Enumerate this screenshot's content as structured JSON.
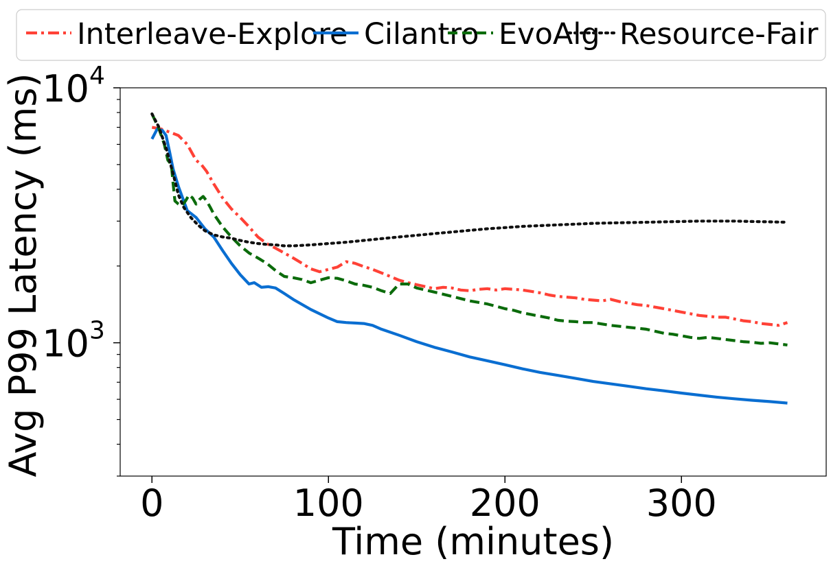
{
  "chart_data": {
    "type": "line",
    "title": "",
    "xlabel": "Time (minutes)",
    "ylabel": "Avg P99 Latency (ms)",
    "xlim": [
      -18,
      382
    ],
    "ylim": [
      300,
      10000
    ],
    "yscale": "log",
    "x_ticks": [
      0,
      100,
      200,
      300
    ],
    "x_tick_labels": [
      "0",
      "100",
      "200",
      "300"
    ],
    "y_major_ticks": [
      1000,
      10000
    ],
    "y_tick_labels": [
      {
        "value": 1000,
        "base": "10",
        "exp": "3"
      },
      {
        "value": 10000,
        "base": "10",
        "exp": "4"
      }
    ],
    "y_minor_ticks": [
      300,
      400,
      500,
      600,
      700,
      800,
      900,
      2000,
      3000,
      4000,
      5000,
      6000,
      7000,
      8000,
      9000
    ],
    "grid": false,
    "legend_position": "top, outside, single row",
    "series": [
      {
        "name": "Interleave-Explore",
        "color": "#ff4136",
        "dash": "dashdot",
        "points": [
          [
            0,
            7000
          ],
          [
            5,
            6900
          ],
          [
            10,
            6700
          ],
          [
            15,
            6500
          ],
          [
            20,
            6000
          ],
          [
            25,
            5200
          ],
          [
            28,
            5000
          ],
          [
            31,
            4700
          ],
          [
            35,
            4200
          ],
          [
            40,
            3700
          ],
          [
            45,
            3350
          ],
          [
            50,
            3100
          ],
          [
            55,
            2850
          ],
          [
            60,
            2600
          ],
          [
            65,
            2450
          ],
          [
            70,
            2350
          ],
          [
            75,
            2250
          ],
          [
            80,
            2150
          ],
          [
            85,
            2050
          ],
          [
            90,
            1950
          ],
          [
            95,
            1900
          ],
          [
            100,
            1940
          ],
          [
            105,
            1980
          ],
          [
            110,
            2080
          ],
          [
            115,
            2050
          ],
          [
            120,
            1990
          ],
          [
            125,
            1940
          ],
          [
            130,
            1880
          ],
          [
            135,
            1820
          ],
          [
            140,
            1760
          ],
          [
            145,
            1720
          ],
          [
            150,
            1690
          ],
          [
            155,
            1660
          ],
          [
            160,
            1630
          ],
          [
            165,
            1650
          ],
          [
            170,
            1640
          ],
          [
            175,
            1610
          ],
          [
            180,
            1600
          ],
          [
            185,
            1620
          ],
          [
            190,
            1630
          ],
          [
            195,
            1610
          ],
          [
            200,
            1630
          ],
          [
            205,
            1620
          ],
          [
            210,
            1610
          ],
          [
            215,
            1590
          ],
          [
            220,
            1570
          ],
          [
            225,
            1540
          ],
          [
            230,
            1520
          ],
          [
            235,
            1510
          ],
          [
            240,
            1500
          ],
          [
            245,
            1480
          ],
          [
            250,
            1470
          ],
          [
            255,
            1460
          ],
          [
            260,
            1480
          ],
          [
            265,
            1450
          ],
          [
            270,
            1430
          ],
          [
            275,
            1410
          ],
          [
            280,
            1400
          ],
          [
            285,
            1380
          ],
          [
            290,
            1360
          ],
          [
            295,
            1340
          ],
          [
            300,
            1320
          ],
          [
            305,
            1300
          ],
          [
            310,
            1280
          ],
          [
            315,
            1270
          ],
          [
            320,
            1260
          ],
          [
            325,
            1260
          ],
          [
            330,
            1240
          ],
          [
            335,
            1220
          ],
          [
            340,
            1210
          ],
          [
            345,
            1190
          ],
          [
            350,
            1180
          ],
          [
            355,
            1170
          ],
          [
            360,
            1200
          ]
        ]
      },
      {
        "name": "Cilantro",
        "color": "#0a6ed1",
        "dash": "solid",
        "points": [
          [
            0,
            6300
          ],
          [
            3,
            6900
          ],
          [
            6,
            6800
          ],
          [
            8,
            6500
          ],
          [
            10,
            5600
          ],
          [
            12,
            4800
          ],
          [
            15,
            4100
          ],
          [
            18,
            3600
          ],
          [
            20,
            3300
          ],
          [
            25,
            3100
          ],
          [
            30,
            2800
          ],
          [
            35,
            2600
          ],
          [
            40,
            2300
          ],
          [
            45,
            2050
          ],
          [
            50,
            1850
          ],
          [
            55,
            1700
          ],
          [
            58,
            1720
          ],
          [
            62,
            1650
          ],
          [
            66,
            1660
          ],
          [
            70,
            1640
          ],
          [
            75,
            1560
          ],
          [
            80,
            1480
          ],
          [
            90,
            1350
          ],
          [
            100,
            1250
          ],
          [
            105,
            1210
          ],
          [
            110,
            1200
          ],
          [
            115,
            1195
          ],
          [
            120,
            1190
          ],
          [
            125,
            1170
          ],
          [
            130,
            1130
          ],
          [
            140,
            1070
          ],
          [
            150,
            1010
          ],
          [
            160,
            960
          ],
          [
            170,
            920
          ],
          [
            180,
            880
          ],
          [
            190,
            850
          ],
          [
            200,
            820
          ],
          [
            210,
            790
          ],
          [
            220,
            765
          ],
          [
            230,
            745
          ],
          [
            240,
            725
          ],
          [
            250,
            705
          ],
          [
            260,
            690
          ],
          [
            270,
            675
          ],
          [
            280,
            660
          ],
          [
            290,
            648
          ],
          [
            300,
            635
          ],
          [
            310,
            623
          ],
          [
            320,
            612
          ],
          [
            330,
            603
          ],
          [
            340,
            595
          ],
          [
            350,
            588
          ],
          [
            360,
            580
          ]
        ]
      },
      {
        "name": "EvoAlg",
        "color": "#0b6b0b",
        "dash": "dashed",
        "points": [
          [
            0,
            7900
          ],
          [
            4,
            6900
          ],
          [
            7,
            6000
          ],
          [
            9,
            5200
          ],
          [
            11,
            5000
          ],
          [
            12,
            4200
          ],
          [
            13,
            3600
          ],
          [
            15,
            3500
          ],
          [
            17,
            3450
          ],
          [
            19,
            3600
          ],
          [
            21,
            3800
          ],
          [
            23,
            3700
          ],
          [
            25,
            3500
          ],
          [
            27,
            3650
          ],
          [
            29,
            3750
          ],
          [
            31,
            3600
          ],
          [
            33,
            3400
          ],
          [
            35,
            3200
          ],
          [
            40,
            2850
          ],
          [
            45,
            2600
          ],
          [
            50,
            2400
          ],
          [
            55,
            2250
          ],
          [
            60,
            2150
          ],
          [
            65,
            2050
          ],
          [
            70,
            1920
          ],
          [
            75,
            1820
          ],
          [
            80,
            1800
          ],
          [
            85,
            1770
          ],
          [
            90,
            1720
          ],
          [
            95,
            1760
          ],
          [
            100,
            1800
          ],
          [
            105,
            1790
          ],
          [
            110,
            1750
          ],
          [
            115,
            1700
          ],
          [
            120,
            1680
          ],
          [
            125,
            1650
          ],
          [
            130,
            1600
          ],
          [
            135,
            1560
          ],
          [
            140,
            1700
          ],
          [
            145,
            1700
          ],
          [
            150,
            1640
          ],
          [
            155,
            1610
          ],
          [
            160,
            1580
          ],
          [
            165,
            1550
          ],
          [
            170,
            1520
          ],
          [
            175,
            1490
          ],
          [
            180,
            1460
          ],
          [
            185,
            1440
          ],
          [
            190,
            1420
          ],
          [
            195,
            1390
          ],
          [
            200,
            1360
          ],
          [
            205,
            1340
          ],
          [
            210,
            1310
          ],
          [
            215,
            1290
          ],
          [
            220,
            1270
          ],
          [
            225,
            1250
          ],
          [
            230,
            1225
          ],
          [
            235,
            1215
          ],
          [
            240,
            1210
          ],
          [
            245,
            1200
          ],
          [
            250,
            1200
          ],
          [
            255,
            1185
          ],
          [
            260,
            1170
          ],
          [
            265,
            1160
          ],
          [
            270,
            1150
          ],
          [
            275,
            1140
          ],
          [
            280,
            1130
          ],
          [
            285,
            1110
          ],
          [
            290,
            1090
          ],
          [
            295,
            1080
          ],
          [
            300,
            1065
          ],
          [
            305,
            1050
          ],
          [
            310,
            1040
          ],
          [
            315,
            1050
          ],
          [
            320,
            1040
          ],
          [
            325,
            1030
          ],
          [
            330,
            1020
          ],
          [
            335,
            1010
          ],
          [
            340,
            1005
          ],
          [
            345,
            995
          ],
          [
            350,
            1000
          ],
          [
            355,
            990
          ],
          [
            360,
            980
          ]
        ]
      },
      {
        "name": "Resource-Fair",
        "color": "#111111",
        "dash": "dotted",
        "points": [
          [
            0,
            7900
          ],
          [
            4,
            7000
          ],
          [
            8,
            5800
          ],
          [
            12,
            4600
          ],
          [
            15,
            3800
          ],
          [
            18,
            3400
          ],
          [
            22,
            3100
          ],
          [
            26,
            2900
          ],
          [
            30,
            2750
          ],
          [
            35,
            2650
          ],
          [
            40,
            2600
          ],
          [
            45,
            2570
          ],
          [
            50,
            2520
          ],
          [
            55,
            2480
          ],
          [
            60,
            2450
          ],
          [
            65,
            2430
          ],
          [
            70,
            2420
          ],
          [
            75,
            2400
          ],
          [
            80,
            2400
          ],
          [
            85,
            2410
          ],
          [
            90,
            2420
          ],
          [
            100,
            2450
          ],
          [
            110,
            2480
          ],
          [
            120,
            2520
          ],
          [
            130,
            2560
          ],
          [
            140,
            2600
          ],
          [
            150,
            2640
          ],
          [
            160,
            2680
          ],
          [
            170,
            2720
          ],
          [
            180,
            2760
          ],
          [
            190,
            2800
          ],
          [
            200,
            2830
          ],
          [
            210,
            2860
          ],
          [
            220,
            2880
          ],
          [
            230,
            2900
          ],
          [
            240,
            2920
          ],
          [
            250,
            2940
          ],
          [
            260,
            2950
          ],
          [
            270,
            2960
          ],
          [
            280,
            2970
          ],
          [
            290,
            2980
          ],
          [
            300,
            2990
          ],
          [
            310,
            3000
          ],
          [
            320,
            3000
          ],
          [
            330,
            3000
          ],
          [
            340,
            2990
          ],
          [
            350,
            2980
          ],
          [
            360,
            2970
          ]
        ]
      }
    ]
  }
}
